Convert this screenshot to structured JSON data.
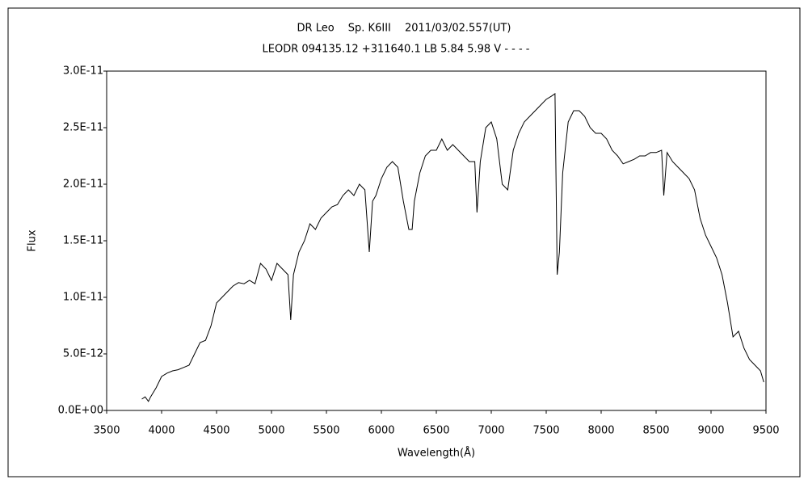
{
  "chart_data": {
    "type": "line",
    "title": "DR Leo　 Sp. K6III　 2011/03/02.557(UT)",
    "subtitle": "LEODR 094135.12 +311640.1 LB 5.84 5.98 V - - - -",
    "x_label": "Wavelength(Å)",
    "y_label": "Flux",
    "color": "#000000",
    "xlim": [
      3500,
      9500
    ],
    "xticks": [
      3500,
      4000,
      4500,
      5000,
      5500,
      6000,
      6500,
      7000,
      7500,
      8000,
      8500,
      9000,
      9500
    ],
    "ylim": [
      0,
      3e-11
    ],
    "yticks": [
      {
        "value": 0,
        "label": "0.0E+00"
      },
      {
        "value": 5e-12,
        "label": "5.0E-12"
      },
      {
        "value": 1e-11,
        "label": "1.0E-11"
      },
      {
        "value": 1.5e-11,
        "label": "1.5E-11"
      },
      {
        "value": 2e-11,
        "label": "2.0E-11"
      },
      {
        "value": 2.5e-11,
        "label": "2.5E-11"
      },
      {
        "value": 3e-11,
        "label": "3.0E-11"
      }
    ],
    "x": [
      3820,
      3850,
      3880,
      3900,
      3950,
      4000,
      4050,
      4100,
      4150,
      4200,
      4250,
      4300,
      4350,
      4400,
      4450,
      4500,
      4550,
      4600,
      4650,
      4700,
      4750,
      4800,
      4850,
      4900,
      4950,
      5000,
      5050,
      5100,
      5150,
      5175,
      5200,
      5250,
      5300,
      5350,
      5400,
      5450,
      5500,
      5550,
      5600,
      5650,
      5700,
      5750,
      5800,
      5850,
      5890,
      5920,
      5950,
      6000,
      6050,
      6100,
      6150,
      6200,
      6250,
      6280,
      6300,
      6350,
      6400,
      6450,
      6500,
      6550,
      6600,
      6650,
      6700,
      6750,
      6800,
      6850,
      6870,
      6900,
      6950,
      7000,
      7050,
      7100,
      7150,
      7200,
      7250,
      7300,
      7350,
      7400,
      7450,
      7500,
      7550,
      7580,
      7600,
      7620,
      7650,
      7700,
      7750,
      7800,
      7850,
      7900,
      7950,
      8000,
      8050,
      8100,
      8150,
      8200,
      8250,
      8300,
      8350,
      8400,
      8450,
      8500,
      8550,
      8570,
      8600,
      8650,
      8700,
      8750,
      8800,
      8850,
      8900,
      8950,
      9000,
      9050,
      9100,
      9150,
      9200,
      9250,
      9300,
      9350,
      9400,
      9450,
      9480
    ],
    "values": [
      1e-12,
      1.2e-12,
      8e-13,
      1.2e-12,
      2e-12,
      3e-12,
      3.3e-12,
      3.5e-12,
      3.6e-12,
      3.8e-12,
      4e-12,
      5e-12,
      6e-12,
      6.2e-12,
      7.5e-12,
      9.5e-12,
      1e-11,
      1.05e-11,
      1.1e-11,
      1.13e-11,
      1.12e-11,
      1.15e-11,
      1.12e-11,
      1.3e-11,
      1.25e-11,
      1.15e-11,
      1.3e-11,
      1.25e-11,
      1.2e-11,
      8e-12,
      1.2e-11,
      1.4e-11,
      1.5e-11,
      1.65e-11,
      1.6e-11,
      1.7e-11,
      1.75e-11,
      1.8e-11,
      1.82e-11,
      1.9e-11,
      1.95e-11,
      1.9e-11,
      2e-11,
      1.95e-11,
      1.4e-11,
      1.85e-11,
      1.9e-11,
      2.05e-11,
      2.15e-11,
      2.2e-11,
      2.15e-11,
      1.85e-11,
      1.6e-11,
      1.6e-11,
      1.85e-11,
      2.1e-11,
      2.25e-11,
      2.3e-11,
      2.3e-11,
      2.4e-11,
      2.3e-11,
      2.35e-11,
      2.3e-11,
      2.25e-11,
      2.2e-11,
      2.2e-11,
      1.75e-11,
      2.2e-11,
      2.5e-11,
      2.55e-11,
      2.4e-11,
      2e-11,
      1.95e-11,
      2.3e-11,
      2.45e-11,
      2.55e-11,
      2.6e-11,
      2.65e-11,
      2.7e-11,
      2.75e-11,
      2.78e-11,
      2.8e-11,
      1.2e-11,
      1.4e-11,
      2.1e-11,
      2.55e-11,
      2.65e-11,
      2.65e-11,
      2.6e-11,
      2.5e-11,
      2.45e-11,
      2.45e-11,
      2.4e-11,
      2.3e-11,
      2.25e-11,
      2.18e-11,
      2.2e-11,
      2.22e-11,
      2.25e-11,
      2.25e-11,
      2.28e-11,
      2.28e-11,
      2.3e-11,
      1.9e-11,
      2.28e-11,
      2.2e-11,
      2.15e-11,
      2.1e-11,
      2.05e-11,
      1.95e-11,
      1.7e-11,
      1.55e-11,
      1.45e-11,
      1.35e-11,
      1.2e-11,
      9.5e-12,
      6.5e-12,
      7e-12,
      5.5e-12,
      4.5e-12,
      4e-12,
      3.5e-12,
      2.5e-12
    ]
  }
}
